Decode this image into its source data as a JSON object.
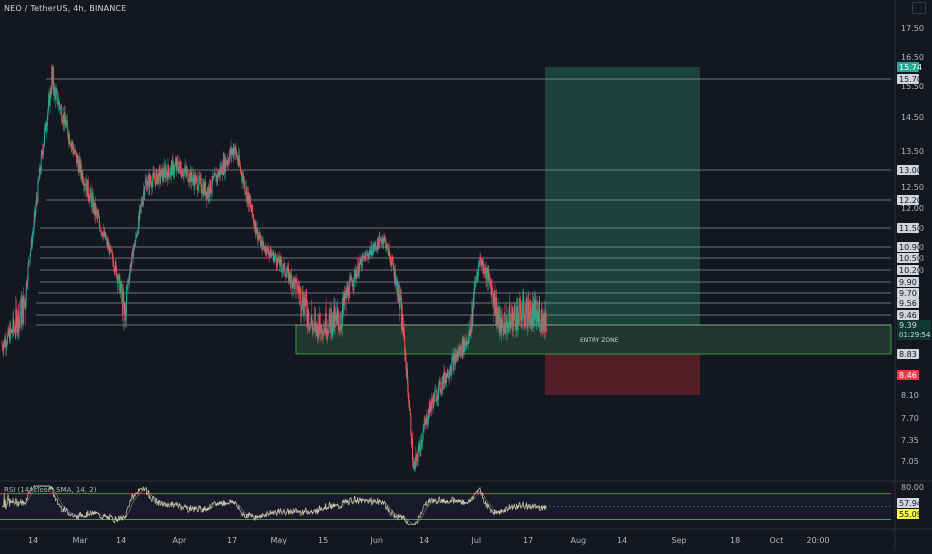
{
  "header": {
    "symbol_title": "NEO / TetherUS, 4h, BINANCE",
    "rsi_title": "RSI (14, close, SMA, 14, 2)"
  },
  "annotations": {
    "entry_zone_label": "ENTRY ZONE",
    "countdown": "01:29:54"
  },
  "colors": {
    "background": "#131722",
    "bull": "#26a69a",
    "bear": "#ef5350",
    "level_line": "#b2b5be",
    "entry_zone": "#4caf50",
    "target_box": "#1e4a41",
    "stop_box": "#5b1f28",
    "rsi_line": "#c9c9a5",
    "rsi_signal": "#e6e6e6"
  },
  "chart_data": {
    "type": "candlestick",
    "x_ticks": [
      "14",
      "Mar",
      "14",
      "Apr",
      "17",
      "May",
      "15",
      "Jun",
      "14",
      "Jul",
      "17",
      "Aug",
      "14",
      "Sep",
      "18",
      "Oct",
      "20:00"
    ],
    "y_ticks": [
      "17.50",
      "16.50",
      "15.50",
      "14.50",
      "13.50",
      "12.50",
      "12.00",
      "11.50",
      "10.90",
      "10.50",
      "10.20",
      "9.90",
      "9.70",
      "9.56",
      "9.46",
      "8.10",
      "7.70",
      "7.35",
      "7.05"
    ],
    "horizontal_levels": [
      15.7,
      13.0,
      12.2,
      11.5,
      10.9,
      10.5,
      10.2,
      9.9,
      9.7,
      9.56,
      9.46,
      9.39
    ],
    "price_labels": [
      {
        "value": "15.74",
        "kind": "target"
      },
      {
        "value": "15.70",
        "kind": "level"
      },
      {
        "value": "13.00",
        "kind": "level"
      },
      {
        "value": "12.20",
        "kind": "level"
      },
      {
        "value": "11.50",
        "kind": "level"
      },
      {
        "value": "10.90",
        "kind": "level"
      },
      {
        "value": "10.50",
        "kind": "level"
      },
      {
        "value": "10.20",
        "kind": "level"
      },
      {
        "value": "9.90",
        "kind": "level"
      },
      {
        "value": "9.70",
        "kind": "level"
      },
      {
        "value": "9.56",
        "kind": "level"
      },
      {
        "value": "9.46",
        "kind": "level"
      },
      {
        "value": "9.39",
        "kind": "current"
      },
      {
        "value": "8.83",
        "kind": "level"
      },
      {
        "value": "8.46",
        "kind": "stop"
      }
    ],
    "entry_zone": {
      "low": 8.83,
      "high": 9.39
    },
    "target_box": {
      "low": 9.39,
      "high": 15.74
    },
    "stop_box": {
      "low": 8.46,
      "high": 8.83
    },
    "price_ylim": [
      6.85,
      17.9
    ],
    "rsi": {
      "y_ticks": [
        "80.00"
      ],
      "labels": [
        "57.94",
        "55.09"
      ],
      "upper": 70,
      "lower": 30,
      "ylim": [
        20,
        85
      ]
    },
    "series_summary": [
      {
        "period": "Feb 7",
        "price": 9.0
      },
      {
        "period": "Feb 14",
        "price": 9.6
      },
      {
        "period": "Feb 22",
        "price": 15.6
      },
      {
        "period": "Mar 1",
        "price": 13.4
      },
      {
        "period": "Mar 10",
        "price": 11.2
      },
      {
        "period": "Mar 16",
        "price": 9.4
      },
      {
        "period": "Mar 22",
        "price": 12.6
      },
      {
        "period": "Apr 1",
        "price": 13.1
      },
      {
        "period": "Apr 10",
        "price": 12.4
      },
      {
        "period": "Apr 18",
        "price": 13.6
      },
      {
        "period": "Apr 26",
        "price": 11.0
      },
      {
        "period": "May 5",
        "price": 10.0
      },
      {
        "period": "May 12",
        "price": 9.3
      },
      {
        "period": "May 20",
        "price": 9.4
      },
      {
        "period": "May 27",
        "price": 10.5
      },
      {
        "period": "Jun 2",
        "price": 11.2
      },
      {
        "period": "Jun 8",
        "price": 9.2
      },
      {
        "period": "Jun 11",
        "price": 6.9
      },
      {
        "period": "Jun 16",
        "price": 7.9
      },
      {
        "period": "Jun 22",
        "price": 8.6
      },
      {
        "period": "Jun 28",
        "price": 9.2
      },
      {
        "period": "Jul 1",
        "price": 10.5
      },
      {
        "period": "Jul 7",
        "price": 9.3
      },
      {
        "period": "Jul 14",
        "price": 9.5
      },
      {
        "period": "Jul 21",
        "price": 9.4
      }
    ]
  }
}
